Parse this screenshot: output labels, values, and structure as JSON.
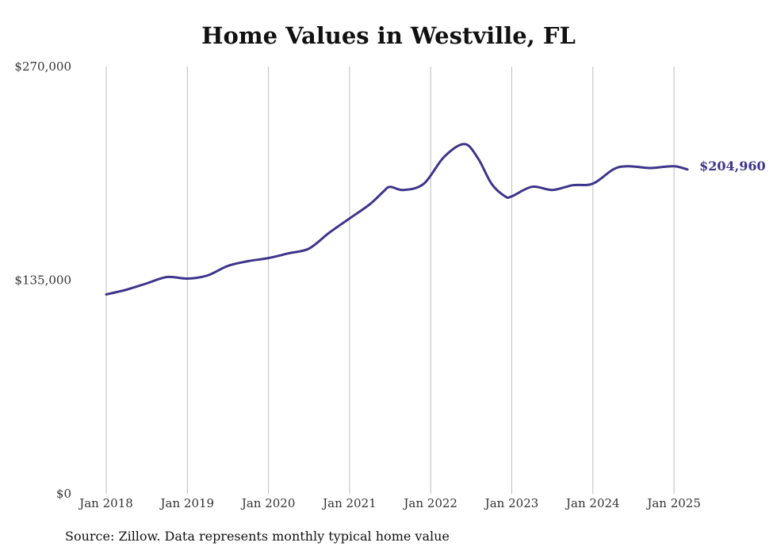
{
  "chart_data": {
    "type": "line",
    "title": "Home Values in Westville, FL",
    "source": "Source: Zillow. Data represents monthly typical home value",
    "ylim": [
      0,
      270000
    ],
    "y_ticks": [
      {
        "value": 0,
        "label": "$0"
      },
      {
        "value": 135000,
        "label": "$135,000"
      },
      {
        "value": 270000,
        "label": "$270,000"
      }
    ],
    "x_ticks": [
      {
        "value": "2018-01",
        "label": "Jan 2018"
      },
      {
        "value": "2019-01",
        "label": "Jan 2019"
      },
      {
        "value": "2020-01",
        "label": "Jan 2020"
      },
      {
        "value": "2021-01",
        "label": "Jan 2021"
      },
      {
        "value": "2022-01",
        "label": "Jan 2022"
      },
      {
        "value": "2023-01",
        "label": "Jan 2023"
      },
      {
        "value": "2024-01",
        "label": "Jan 2024"
      },
      {
        "value": "2025-01",
        "label": "Jan 2025"
      }
    ],
    "grid": {
      "vertical": true,
      "horizontal": false
    },
    "line_color": "#3d348b",
    "end_label": "$204,960",
    "series": [
      {
        "x": [
          "2018-01",
          "2018-04",
          "2018-07",
          "2018-10",
          "2019-01",
          "2019-04",
          "2019-07",
          "2019-10",
          "2020-01",
          "2020-04",
          "2020-07",
          "2020-10",
          "2021-01",
          "2021-04",
          "2021-06",
          "2021-07",
          "2021-09",
          "2021-12",
          "2022-03",
          "2022-06",
          "2022-08",
          "2022-10",
          "2022-12",
          "2023-01",
          "2023-04",
          "2023-07",
          "2023-10",
          "2024-01",
          "2024-04",
          "2024-06",
          "2024-09",
          "2024-10",
          "2025-01",
          "2025-03"
        ],
        "y": [
          126000,
          129000,
          133000,
          137000,
          136000,
          138000,
          144000,
          147000,
          149000,
          152000,
          155000,
          165000,
          174000,
          183000,
          191000,
          194000,
          192000,
          196000,
          213000,
          221000,
          212000,
          196000,
          188000,
          188000,
          194000,
          192000,
          195000,
          196000,
          205000,
          207000,
          206000,
          206000,
          207000,
          204960
        ]
      }
    ]
  }
}
